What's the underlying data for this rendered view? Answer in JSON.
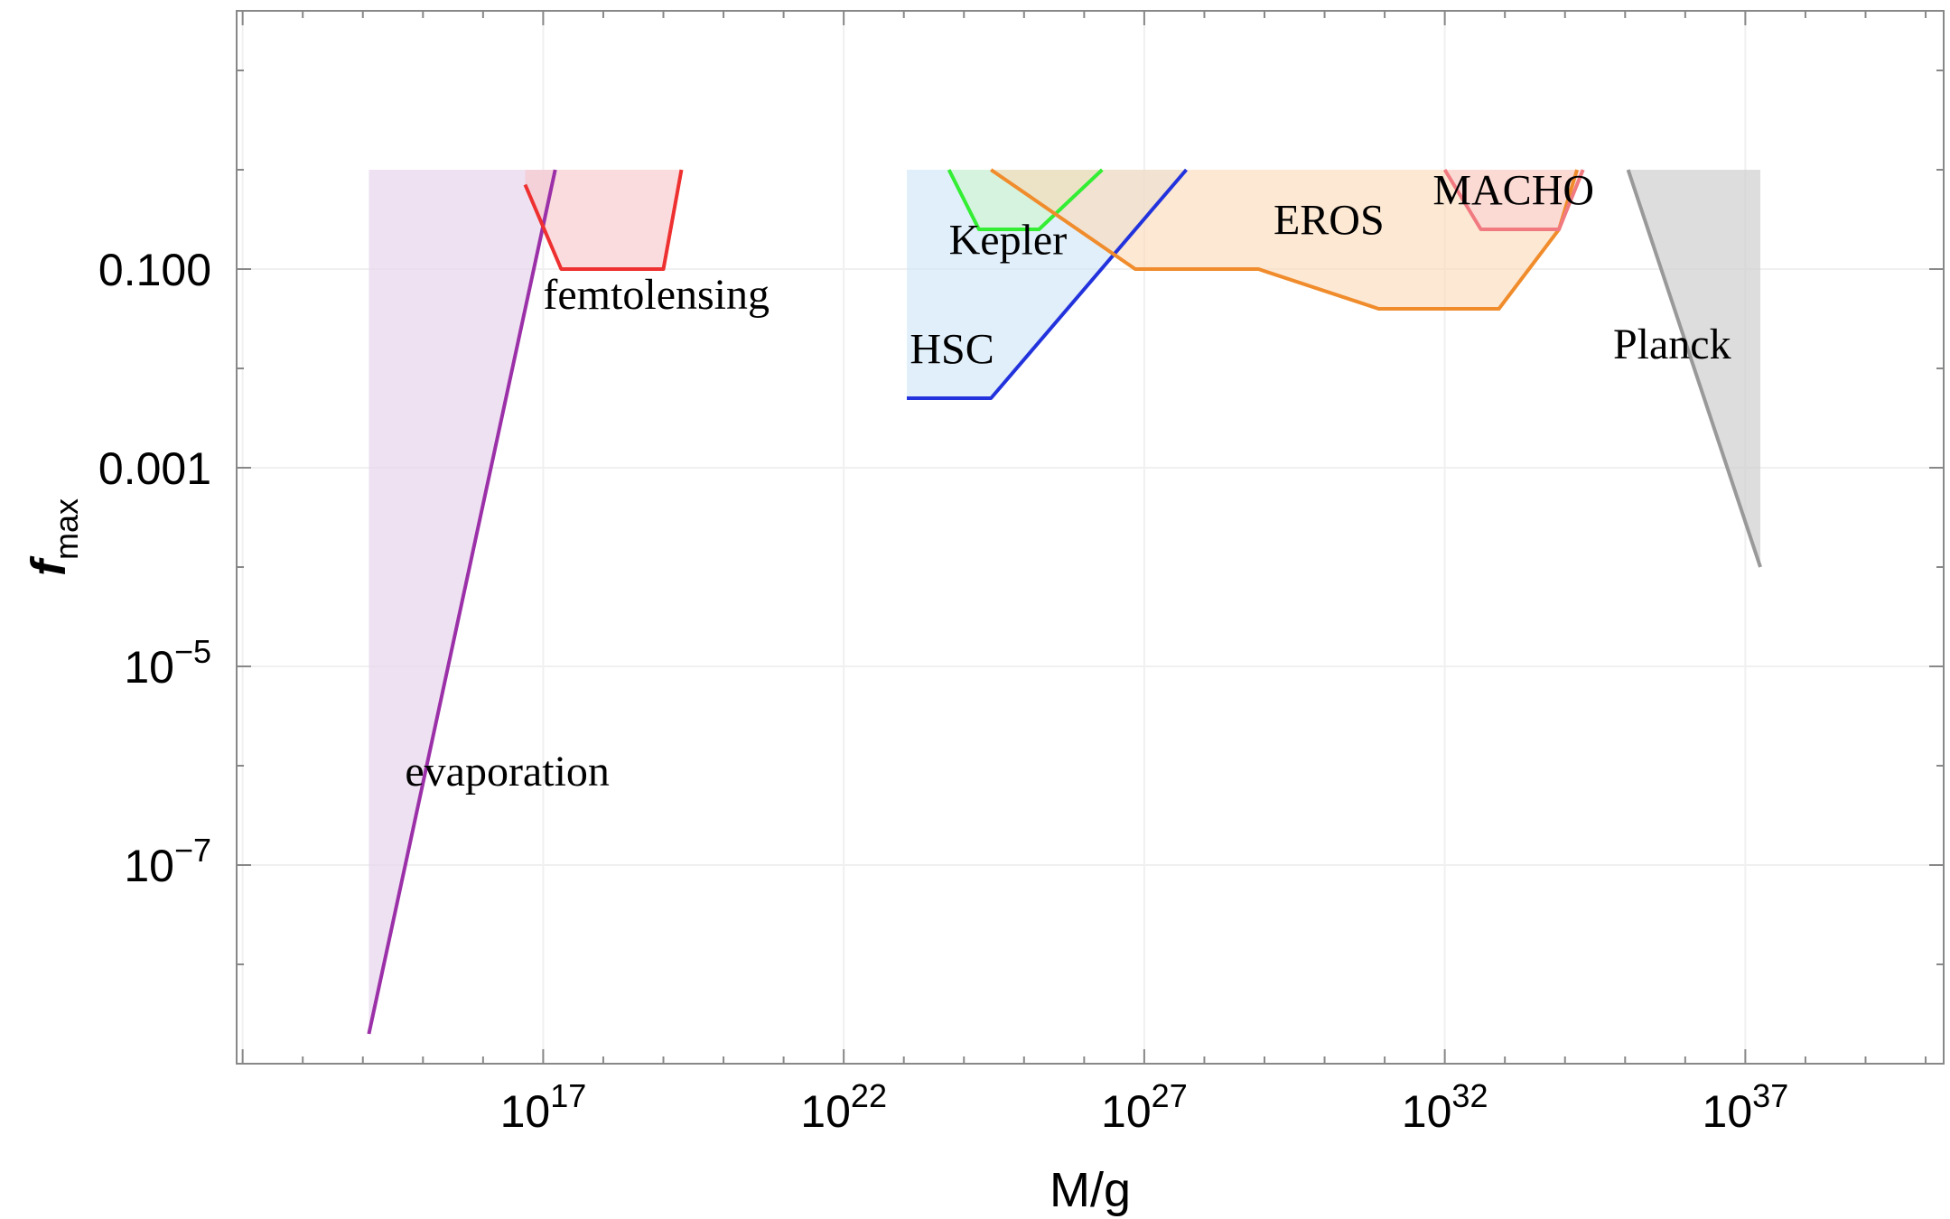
{
  "chart_data": {
    "type": "area",
    "title": "",
    "xlabel": "M/g",
    "ylabel": "f",
    "ylabel_sub": "max",
    "x_scale": "log10",
    "y_scale": "log10",
    "xlim_log10": [
      11.9,
      40.3
    ],
    "ylim_log10": [
      -9.0,
      1.6
    ],
    "x_ticks": [
      {
        "log10": 17,
        "base": "10",
        "exp": "17"
      },
      {
        "log10": 22,
        "base": "10",
        "exp": "22"
      },
      {
        "log10": 27,
        "base": "10",
        "exp": "27"
      },
      {
        "log10": 32,
        "base": "10",
        "exp": "32"
      },
      {
        "log10": 37,
        "base": "10",
        "exp": "37"
      }
    ],
    "y_ticks": [
      {
        "log10": -1,
        "label": "0.100"
      },
      {
        "log10": -3,
        "label": "0.001"
      },
      {
        "log10": -5,
        "base": "10",
        "exp": "−5"
      },
      {
        "log10": -7,
        "base": "10",
        "exp": "−7"
      }
    ],
    "top_log10": 0.0,
    "series": [
      {
        "name": "evaporation",
        "label": "evaporation",
        "color": "#9b30a8",
        "fill": "#e8d8ee",
        "fill_opacity": 0.75,
        "points_log10": [
          [
            14.1,
            -8.7
          ],
          [
            17.2,
            0.0
          ]
        ],
        "fill_polygon_log10": [
          [
            14.1,
            0.0
          ],
          [
            14.1,
            -8.7
          ],
          [
            17.2,
            0.0
          ]
        ],
        "label_at_log10": [
          14.7,
          -6.2
        ]
      },
      {
        "name": "femtolensing",
        "label": "femtolensing",
        "color": "#ee3030",
        "fill": "#f8c4c8",
        "fill_opacity": 0.6,
        "points_log10": [
          [
            16.7,
            -0.15
          ],
          [
            17.3,
            -1.0
          ],
          [
            19.0,
            -1.0
          ],
          [
            19.3,
            0.0
          ]
        ],
        "fill_polygon_log10": [
          [
            16.7,
            0.0
          ],
          [
            16.7,
            -0.15
          ],
          [
            17.3,
            -1.0
          ],
          [
            19.0,
            -1.0
          ],
          [
            19.3,
            0.0
          ]
        ],
        "label_at_log10": [
          17.0,
          -1.4
        ]
      },
      {
        "name": "HSC",
        "label": "HSC",
        "color": "#2233dd",
        "fill": "#cde4f6",
        "fill_opacity": 0.6,
        "points_log10": [
          [
            23.05,
            -2.3
          ],
          [
            24.45,
            -2.3
          ],
          [
            27.7,
            0.0
          ]
        ],
        "fill_polygon_log10": [
          [
            23.05,
            0.0
          ],
          [
            23.05,
            -2.3
          ],
          [
            24.45,
            -2.3
          ],
          [
            27.7,
            0.0
          ]
        ],
        "label_at_log10": [
          23.1,
          -1.95
        ]
      },
      {
        "name": "Kepler",
        "label": "Kepler",
        "color": "#33ee33",
        "fill": "#cdf5cd",
        "fill_opacity": 0.6,
        "points_log10": [
          [
            23.75,
            0.0
          ],
          [
            24.25,
            -0.6
          ],
          [
            25.25,
            -0.6
          ],
          [
            26.3,
            0.0
          ]
        ],
        "fill_polygon_log10": [
          [
            23.75,
            0.0
          ],
          [
            24.25,
            -0.6
          ],
          [
            25.25,
            -0.6
          ],
          [
            26.3,
            0.0
          ]
        ],
        "label_at_log10": [
          23.75,
          -0.85
        ]
      },
      {
        "name": "EROS",
        "label": "EROS",
        "color": "#f08c2c",
        "fill": "#fcd8b8",
        "fill_opacity": 0.6,
        "points_log10": [
          [
            24.45,
            0.0
          ],
          [
            26.85,
            -1.0
          ],
          [
            28.9,
            -1.0
          ],
          [
            30.9,
            -1.4
          ],
          [
            32.9,
            -1.4
          ],
          [
            33.9,
            -0.6
          ],
          [
            34.2,
            0.0
          ]
        ],
        "fill_polygon_log10": [
          [
            24.45,
            0.0
          ],
          [
            26.85,
            -1.0
          ],
          [
            28.9,
            -1.0
          ],
          [
            30.9,
            -1.4
          ],
          [
            32.9,
            -1.4
          ],
          [
            33.9,
            -0.6
          ],
          [
            34.2,
            0.0
          ]
        ],
        "label_at_log10": [
          29.15,
          -0.65
        ]
      },
      {
        "name": "MACHO",
        "label": "MACHO",
        "color": "#f07a80",
        "fill": "#fbd0d4",
        "fill_opacity": 0.6,
        "points_log10": [
          [
            32.0,
            0.0
          ],
          [
            32.6,
            -0.6
          ],
          [
            33.9,
            -0.6
          ],
          [
            34.3,
            0.0
          ]
        ],
        "fill_polygon_log10": [
          [
            32.0,
            0.0
          ],
          [
            32.6,
            -0.6
          ],
          [
            33.9,
            -0.6
          ],
          [
            34.3,
            0.0
          ]
        ],
        "label_at_log10": [
          31.8,
          -0.35
        ]
      },
      {
        "name": "Planck",
        "label": "Planck",
        "color": "#999999",
        "fill": "#cfcfcf",
        "fill_opacity": 0.7,
        "points_log10": [
          [
            35.05,
            0.0
          ],
          [
            37.25,
            -4.0
          ]
        ],
        "fill_polygon_log10": [
          [
            35.05,
            0.0
          ],
          [
            37.25,
            -4.0
          ],
          [
            37.25,
            0.0
          ]
        ],
        "label_at_log10": [
          34.8,
          -1.9
        ]
      }
    ]
  }
}
